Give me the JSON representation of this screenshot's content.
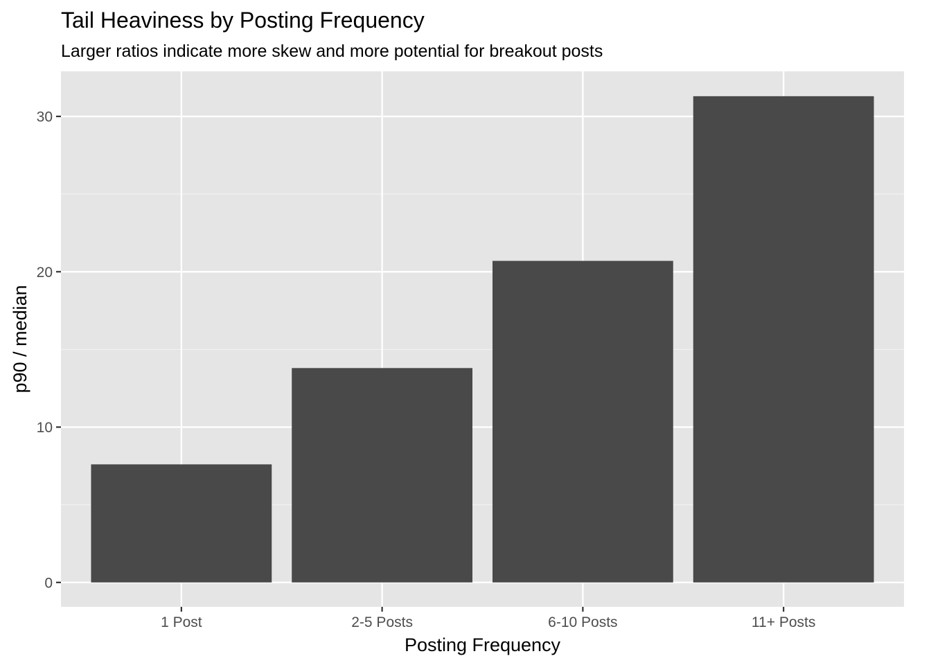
{
  "chart_data": {
    "type": "bar",
    "title": "Tail Heaviness by Posting Frequency",
    "subtitle": "Larger ratios indicate more skew and more potential for breakout posts",
    "xlabel": "Posting Frequency",
    "ylabel": "p90 / median",
    "categories": [
      "1 Post",
      "2-5 Posts",
      "6-10 Posts",
      "11+ Posts"
    ],
    "values": [
      7.6,
      13.8,
      20.7,
      31.3
    ],
    "ylim": [
      -1.57,
      32.9
    ],
    "yticks": [
      0,
      10,
      20,
      30
    ],
    "ytick_labels": [
      "0",
      "10",
      "20",
      "30"
    ],
    "grid": true,
    "legend": "none",
    "colors": {
      "bar": "#494949",
      "panel": "#e5e5e5",
      "grid_major": "#ffffff",
      "grid_minor": "#f2f2f2",
      "tick_text": "#4d4d4d",
      "text": "#000000"
    }
  }
}
